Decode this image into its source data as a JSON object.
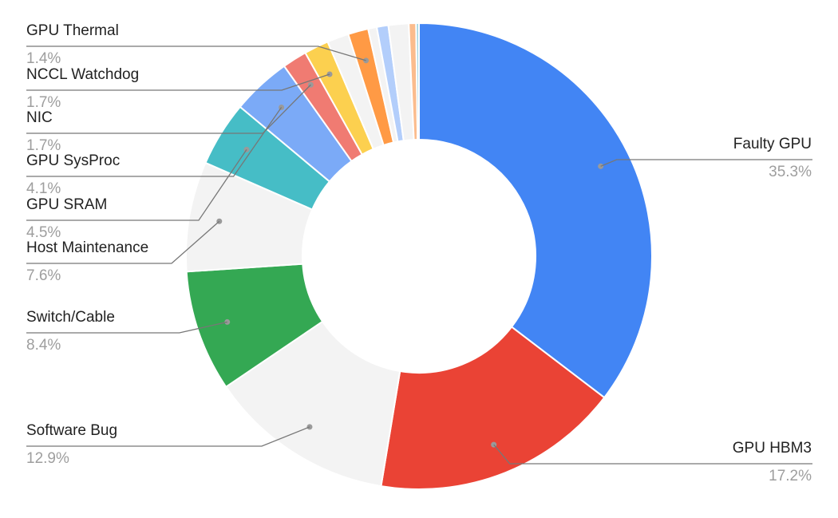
{
  "chart_data": {
    "type": "pie",
    "style": "donut",
    "slices": [
      {
        "label": "Faulty GPU",
        "value": 35.3,
        "display": "35.3%",
        "color": "#4285f4",
        "labeled": true
      },
      {
        "label": "GPU HBM3",
        "value": 17.2,
        "display": "17.2%",
        "color": "#ea4335",
        "labeled": true
      },
      {
        "label": "Software Bug",
        "value": 12.9,
        "display": "12.9%",
        "color": "#f3f3f3",
        "labeled": true
      },
      {
        "label": "Switch/Cable",
        "value": 8.4,
        "display": "8.4%",
        "color": "#34a853",
        "labeled": true
      },
      {
        "label": "Host Maintenance",
        "value": 7.6,
        "display": "7.6%",
        "color": "#f3f3f3",
        "labeled": true
      },
      {
        "label": "GPU SRAM",
        "value": 4.5,
        "display": "4.5%",
        "color": "#46bdc6",
        "labeled": true
      },
      {
        "label": "GPU SysProc",
        "value": 4.1,
        "display": "4.1%",
        "color": "#7baaf7",
        "labeled": true
      },
      {
        "label": "NIC",
        "value": 1.7,
        "display": "1.7%",
        "color": "#f07b72",
        "labeled": true
      },
      {
        "label": "NCCL Watchdog",
        "value": 1.7,
        "display": "1.7%",
        "color": "#fcd04f",
        "labeled": true
      },
      {
        "label": "",
        "value": 1.5,
        "display": "",
        "color": "#f3f3f3",
        "labeled": false
      },
      {
        "label": "GPU Thermal",
        "value": 1.4,
        "display": "1.4%",
        "color": "#ff9a45",
        "labeled": true
      },
      {
        "label": "",
        "value": 0.6,
        "display": "",
        "color": "#f3f3f3",
        "labeled": false
      },
      {
        "label": "",
        "value": 0.8,
        "display": "",
        "color": "#b3cefb",
        "labeled": false
      },
      {
        "label": "",
        "value": 1.4,
        "display": "",
        "color": "#f3f3f3",
        "labeled": false
      },
      {
        "label": "",
        "value": 0.5,
        "display": "",
        "color": "#fbbc8d",
        "labeled": false
      },
      {
        "label": "",
        "value": 0.2,
        "display": "",
        "color": "#9fd4e0",
        "labeled": false
      }
    ]
  }
}
